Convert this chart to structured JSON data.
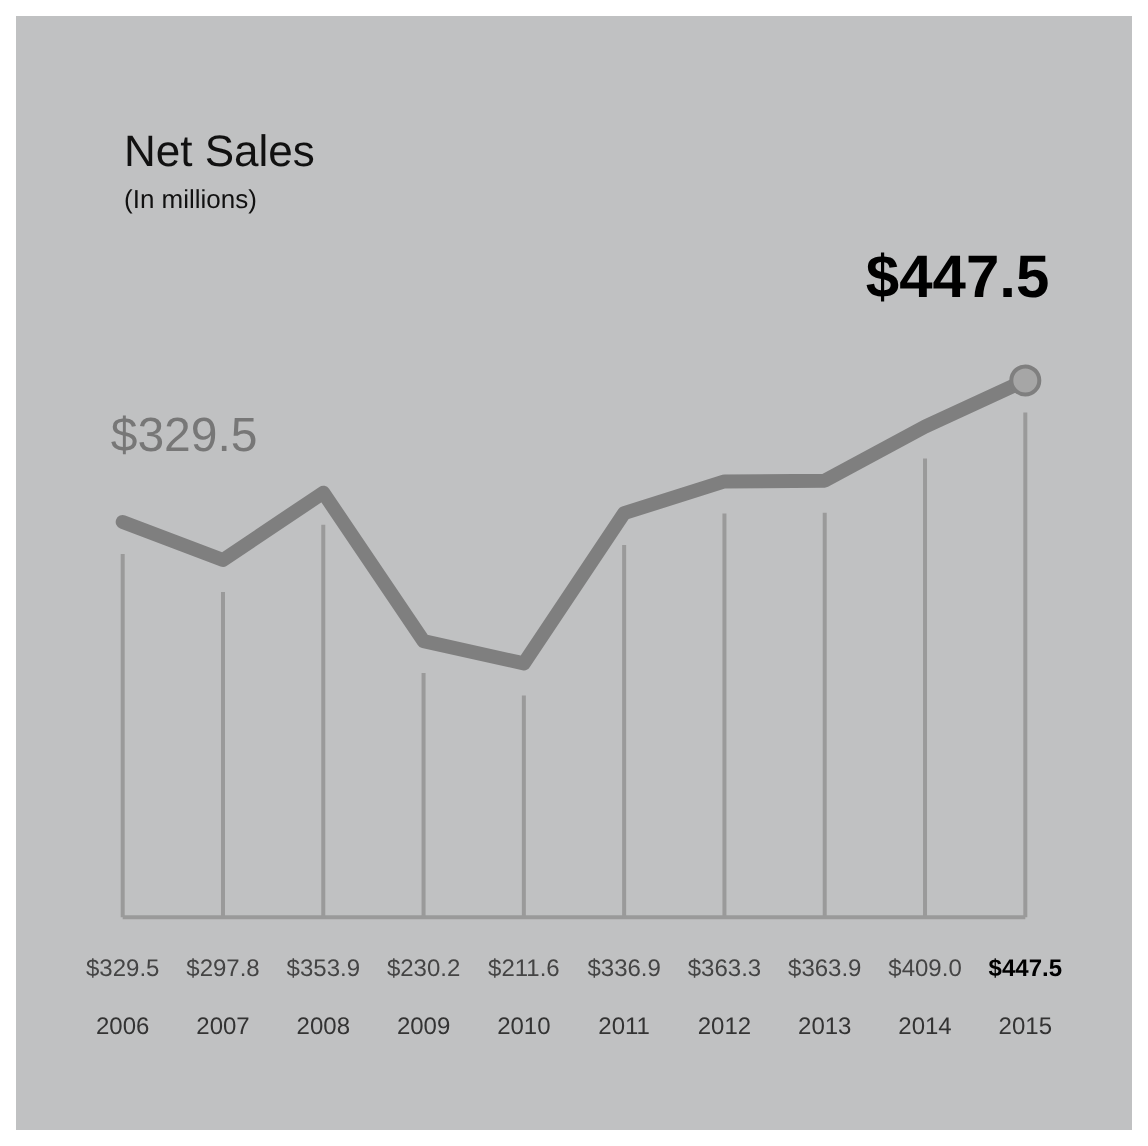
{
  "chart_data": {
    "type": "line",
    "title": "Net Sales",
    "subtitle": "(In millions)",
    "categories": [
      "2006",
      "2007",
      "2008",
      "2009",
      "2010",
      "2011",
      "2012",
      "2013",
      "2014",
      "2015"
    ],
    "values": [
      329.5,
      297.8,
      353.9,
      230.2,
      211.6,
      336.9,
      363.3,
      363.9,
      409.0,
      447.5
    ],
    "value_labels": [
      "$329.5",
      "$297.8",
      "$353.9",
      "$230.2",
      "$211.6",
      "$336.9",
      "$363.3",
      "$363.9",
      "$409.0",
      "$447.5"
    ],
    "color": "#7f7f7f",
    "marker": "none",
    "grid": "x",
    "legend": false,
    "annotations": [
      {
        "text": "$329.5",
        "x": "2006",
        "y": 329.5
      },
      {
        "text": "$447.5",
        "x": "2015",
        "y": 447.5
      }
    ]
  }
}
